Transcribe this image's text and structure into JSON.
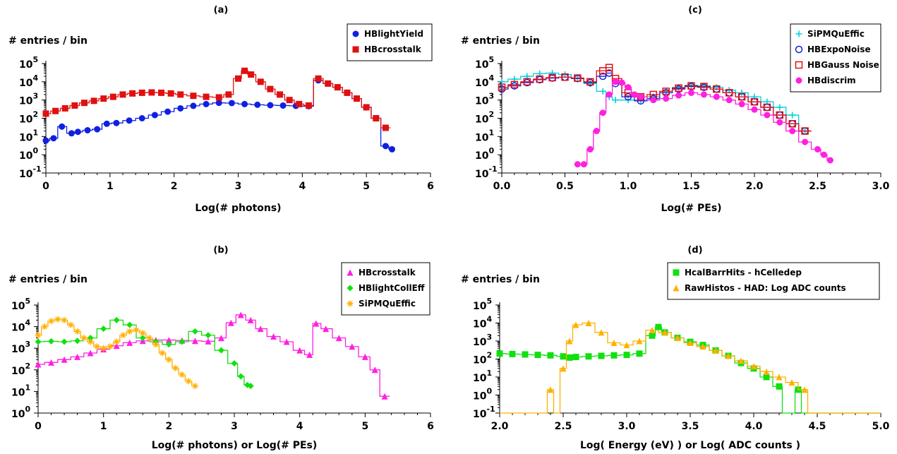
{
  "chart_data": [
    {
      "type": "line",
      "title": "(a)",
      "ylabel": "# entries / bin",
      "xlabel": "Log(# photons)",
      "xlim": [
        0,
        6
      ],
      "xticks": [
        "0",
        "1",
        "2",
        "3",
        "4",
        "5",
        "6"
      ],
      "log_y": true,
      "ylim_exp": [
        -1,
        5
      ],
      "legend_position": "top-right",
      "series": [
        {
          "name": "HBlightYield",
          "color": "#1020e0",
          "marker": "circle",
          "x": [
            0,
            0.12,
            0.25,
            0.4,
            0.5,
            0.65,
            0.8,
            0.95,
            1.1,
            1.3,
            1.5,
            1.7,
            1.9,
            2.1,
            2.3,
            2.5,
            2.7,
            2.9,
            3.1,
            3.3,
            3.5,
            3.7,
            3.9,
            4.1,
            4.25,
            4.4,
            4.55,
            4.7,
            4.85,
            5.0,
            5.15,
            5.3,
            5.4
          ],
          "y": [
            6,
            8,
            35,
            15,
            18,
            22,
            25,
            50,
            55,
            75,
            100,
            150,
            230,
            350,
            480,
            600,
            700,
            680,
            600,
            550,
            520,
            500,
            480,
            460,
            12000,
            8000,
            5000,
            2500,
            1200,
            400,
            100,
            3,
            2
          ]
        },
        {
          "name": "HBcrosstalk",
          "color": "#e01010",
          "marker": "square",
          "x": [
            0,
            0.15,
            0.3,
            0.45,
            0.6,
            0.75,
            0.9,
            1.05,
            1.2,
            1.35,
            1.5,
            1.65,
            1.8,
            1.95,
            2.1,
            2.3,
            2.5,
            2.7,
            2.85,
            3.0,
            3.1,
            3.2,
            3.35,
            3.5,
            3.65,
            3.8,
            3.95,
            4.1,
            4.25,
            4.4,
            4.55,
            4.7,
            4.85,
            5.0,
            5.15,
            5.3
          ],
          "y": [
            180,
            250,
            350,
            500,
            700,
            900,
            1200,
            1500,
            2000,
            2300,
            2500,
            2600,
            2500,
            2300,
            2000,
            1700,
            1500,
            1400,
            2000,
            15000,
            40000,
            25000,
            10000,
            4000,
            2000,
            1000,
            600,
            500,
            15000,
            8000,
            5000,
            2500,
            1200,
            400,
            100,
            30
          ]
        }
      ]
    },
    {
      "type": "line",
      "title": "(c)",
      "ylabel": "# entries / bin",
      "xlabel": "Log(# PEs)",
      "xlim": [
        0,
        3
      ],
      "xticks": [
        "0.0",
        "0.5",
        "1.0",
        "1.5",
        "2.0",
        "2.5",
        "3.0"
      ],
      "log_y": true,
      "ylim_exp": [
        -1,
        5
      ],
      "legend_position": "top-right",
      "series": [
        {
          "name": "SiPMQuEffic",
          "color": "#00d0e0",
          "marker": "plus",
          "x": [
            0,
            0.1,
            0.2,
            0.3,
            0.4,
            0.5,
            0.6,
            0.7,
            0.8,
            0.85,
            0.9,
            1.0,
            1.1,
            1.2,
            1.3,
            1.4,
            1.5,
            1.6,
            1.7,
            1.8,
            1.9,
            2.0,
            2.1,
            2.2,
            2.3,
            2.4
          ],
          "y": [
            10000,
            14000,
            20000,
            28000,
            30000,
            25000,
            15000,
            8000,
            3000,
            1500,
            1000,
            1000,
            1000,
            1500,
            3000,
            5000,
            6500,
            6000,
            5000,
            3500,
            2500,
            1500,
            800,
            400,
            150,
            20
          ]
        },
        {
          "name": "HBExpoNoise",
          "color": "#1020e0",
          "marker": "circle-open",
          "x": [
            0,
            0.1,
            0.2,
            0.3,
            0.4,
            0.5,
            0.6,
            0.7,
            0.8,
            0.85,
            0.9,
            1.0,
            1.1,
            1.2,
            1.3,
            1.4,
            1.5,
            1.6,
            1.7,
            1.8,
            1.9,
            2.0,
            2.1,
            2.2,
            2.3,
            2.4
          ],
          "y": [
            4000,
            6000,
            9000,
            13000,
            16000,
            18000,
            15000,
            9000,
            20000,
            30000,
            8000,
            1500,
            900,
            1200,
            2500,
            4000,
            5500,
            5000,
            4000,
            2500,
            1500,
            800,
            400,
            150,
            50,
            20
          ]
        },
        {
          "name": "HBGauss Noise",
          "color": "#e01010",
          "marker": "square-open",
          "x": [
            0,
            0.1,
            0.2,
            0.3,
            0.4,
            0.5,
            0.6,
            0.7,
            0.8,
            0.85,
            0.9,
            1.0,
            1.1,
            1.2,
            1.3,
            1.4,
            1.5,
            1.6,
            1.7,
            1.8,
            1.9,
            2.0,
            2.1,
            2.2,
            2.3,
            2.4
          ],
          "y": [
            5000,
            7000,
            10000,
            14000,
            17000,
            18000,
            16000,
            10000,
            40000,
            60000,
            15000,
            2500,
            1500,
            2000,
            3000,
            4500,
            6000,
            5500,
            4000,
            2500,
            1500,
            800,
            400,
            150,
            50,
            20
          ]
        },
        {
          "name": "HBdiscrim",
          "color": "#ff20e0",
          "marker": "circle",
          "x": [
            0.6,
            0.65,
            0.7,
            0.75,
            0.8,
            0.85,
            0.9,
            0.95,
            1.0,
            1.05,
            1.1,
            1.2,
            1.3,
            1.4,
            1.5,
            1.6,
            1.7,
            1.8,
            1.9,
            2.0,
            2.1,
            2.2,
            2.3,
            2.4,
            2.5,
            2.55,
            2.6
          ],
          "y": [
            0.3,
            0.3,
            2,
            20,
            200,
            2000,
            10000,
            9000,
            5000,
            2000,
            1500,
            1000,
            1200,
            1800,
            2500,
            2000,
            1500,
            1000,
            600,
            300,
            150,
            60,
            20,
            5,
            2,
            1,
            0.5
          ]
        }
      ]
    },
    {
      "type": "line",
      "title": "(b)",
      "ylabel": "# entries / bin",
      "xlabel": "Log(# photons)  or  Log(# PEs)",
      "xlim": [
        0,
        6
      ],
      "xticks": [
        "0",
        "1",
        "2",
        "3",
        "4",
        "5",
        "6"
      ],
      "log_y": true,
      "ylim_exp": [
        0,
        5
      ],
      "legend_position": "top-right",
      "series": [
        {
          "name": "HBcrosstalk",
          "color": "#ff20e0",
          "marker": "triangle",
          "x": [
            0,
            0.2,
            0.4,
            0.6,
            0.8,
            1.0,
            1.2,
            1.4,
            1.6,
            1.8,
            2.0,
            2.2,
            2.4,
            2.6,
            2.8,
            2.95,
            3.1,
            3.25,
            3.4,
            3.6,
            3.8,
            4.0,
            4.15,
            4.25,
            4.4,
            4.6,
            4.8,
            5.0,
            5.15,
            5.3
          ],
          "y": [
            180,
            220,
            300,
            400,
            600,
            900,
            1300,
            1800,
            2200,
            2400,
            2400,
            2300,
            2200,
            2100,
            3000,
            15000,
            35000,
            20000,
            8000,
            3500,
            2000,
            800,
            500,
            14000,
            8000,
            3000,
            1200,
            400,
            100,
            6
          ]
        },
        {
          "name": "HBlightCollEff",
          "color": "#10e010",
          "marker": "diamond",
          "x": [
            0,
            0.2,
            0.4,
            0.6,
            0.8,
            1.0,
            1.2,
            1.4,
            1.6,
            1.8,
            2.0,
            2.2,
            2.4,
            2.6,
            2.8,
            3.0,
            3.1,
            3.2,
            3.25
          ],
          "y": [
            2000,
            2100,
            2000,
            2200,
            3000,
            8000,
            20000,
            12000,
            3000,
            2000,
            1500,
            2000,
            6000,
            4000,
            800,
            200,
            50,
            20,
            18
          ]
        },
        {
          "name": "SiPMQuEffic",
          "color": "#ffb000",
          "marker": "star",
          "x": [
            0,
            0.1,
            0.2,
            0.3,
            0.4,
            0.5,
            0.6,
            0.7,
            0.8,
            0.9,
            1.0,
            1.1,
            1.2,
            1.3,
            1.4,
            1.5,
            1.6,
            1.7,
            1.8,
            1.9,
            2.0,
            2.1,
            2.2,
            2.3,
            2.4
          ],
          "y": [
            4000,
            10000,
            18000,
            22000,
            20000,
            12000,
            6000,
            3000,
            2000,
            1200,
            1000,
            1200,
            2000,
            4000,
            6000,
            7000,
            5000,
            3000,
            1500,
            600,
            300,
            120,
            60,
            30,
            18
          ]
        }
      ]
    },
    {
      "type": "line",
      "title": "(d)",
      "ylabel": "# entries / bin",
      "xlabel": "Log( Energy (eV) )  or  Log( ADC counts )",
      "xlim": [
        2,
        5
      ],
      "xticks": [
        "2.0",
        "2.5",
        "3.0",
        "3.5",
        "4.0",
        "4.5",
        "5.0"
      ],
      "log_y": true,
      "ylim_exp": [
        -1,
        5
      ],
      "legend_position": "top-right",
      "series": [
        {
          "name": "HcalBarrHits - hCelledep",
          "color": "#10e010",
          "marker": "square",
          "x": [
            2.0,
            2.1,
            2.2,
            2.3,
            2.4,
            2.5,
            2.55,
            2.6,
            2.7,
            2.8,
            2.9,
            3.0,
            3.1,
            3.2,
            3.25,
            3.3,
            3.4,
            3.5,
            3.6,
            3.7,
            3.8,
            3.9,
            4.0,
            4.1,
            4.2,
            4.25,
            4.3,
            4.35,
            4.4,
            4.5,
            4.6,
            4.7,
            4.8,
            4.9,
            5.0
          ],
          "y": [
            200,
            190,
            180,
            170,
            160,
            140,
            120,
            130,
            140,
            150,
            160,
            170,
            200,
            2000,
            6000,
            3000,
            1500,
            900,
            600,
            300,
            150,
            60,
            30,
            10,
            3,
            0.1,
            0.1,
            2,
            0.1,
            0.1,
            0.1,
            0.1,
            0.1,
            0.1,
            0.1
          ]
        },
        {
          "name": "RawHistos - HAD: Log ADC counts",
          "color": "#ffb000",
          "marker": "triangle",
          "x": [
            2.0,
            2.1,
            2.2,
            2.3,
            2.35,
            2.4,
            2.45,
            2.5,
            2.55,
            2.6,
            2.7,
            2.8,
            2.9,
            3.0,
            3.1,
            3.2,
            3.3,
            3.4,
            3.5,
            3.6,
            3.7,
            3.8,
            3.9,
            4.0,
            4.1,
            4.2,
            4.3,
            4.4,
            4.45,
            4.5,
            4.6,
            4.7,
            4.8,
            4.9,
            5.0
          ],
          "y": [
            0.1,
            0.1,
            0.1,
            0.1,
            0.1,
            2,
            0.1,
            30,
            1000,
            8000,
            10000,
            3000,
            800,
            600,
            1000,
            4000,
            3000,
            1500,
            800,
            500,
            300,
            150,
            80,
            40,
            20,
            10,
            5,
            2,
            0.1,
            0.1,
            0.1,
            0.1,
            0.1,
            0.1,
            0.1
          ]
        }
      ]
    }
  ]
}
